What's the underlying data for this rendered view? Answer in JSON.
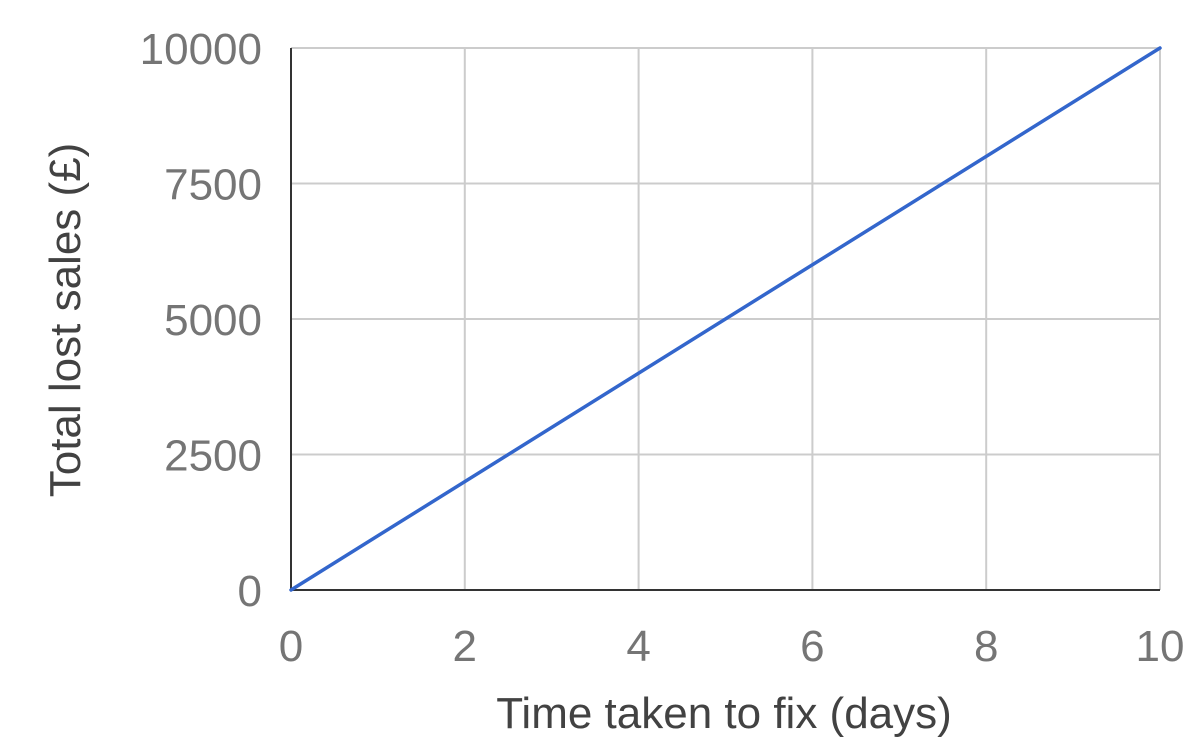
{
  "chart_data": {
    "type": "line",
    "title": "",
    "xlabel": "Time taken to fix (days)",
    "ylabel": "Total lost sales (£)",
    "xlim": [
      0,
      10
    ],
    "ylim": [
      0,
      10000
    ],
    "x_ticks": [
      0,
      2,
      4,
      6,
      8,
      10
    ],
    "y_ticks": [
      0,
      2500,
      5000,
      7500,
      10000
    ],
    "grid": true,
    "legend": "none",
    "series": [
      {
        "color": "#3366cc",
        "x": [
          0,
          10
        ],
        "y": [
          0,
          10000
        ]
      }
    ]
  }
}
